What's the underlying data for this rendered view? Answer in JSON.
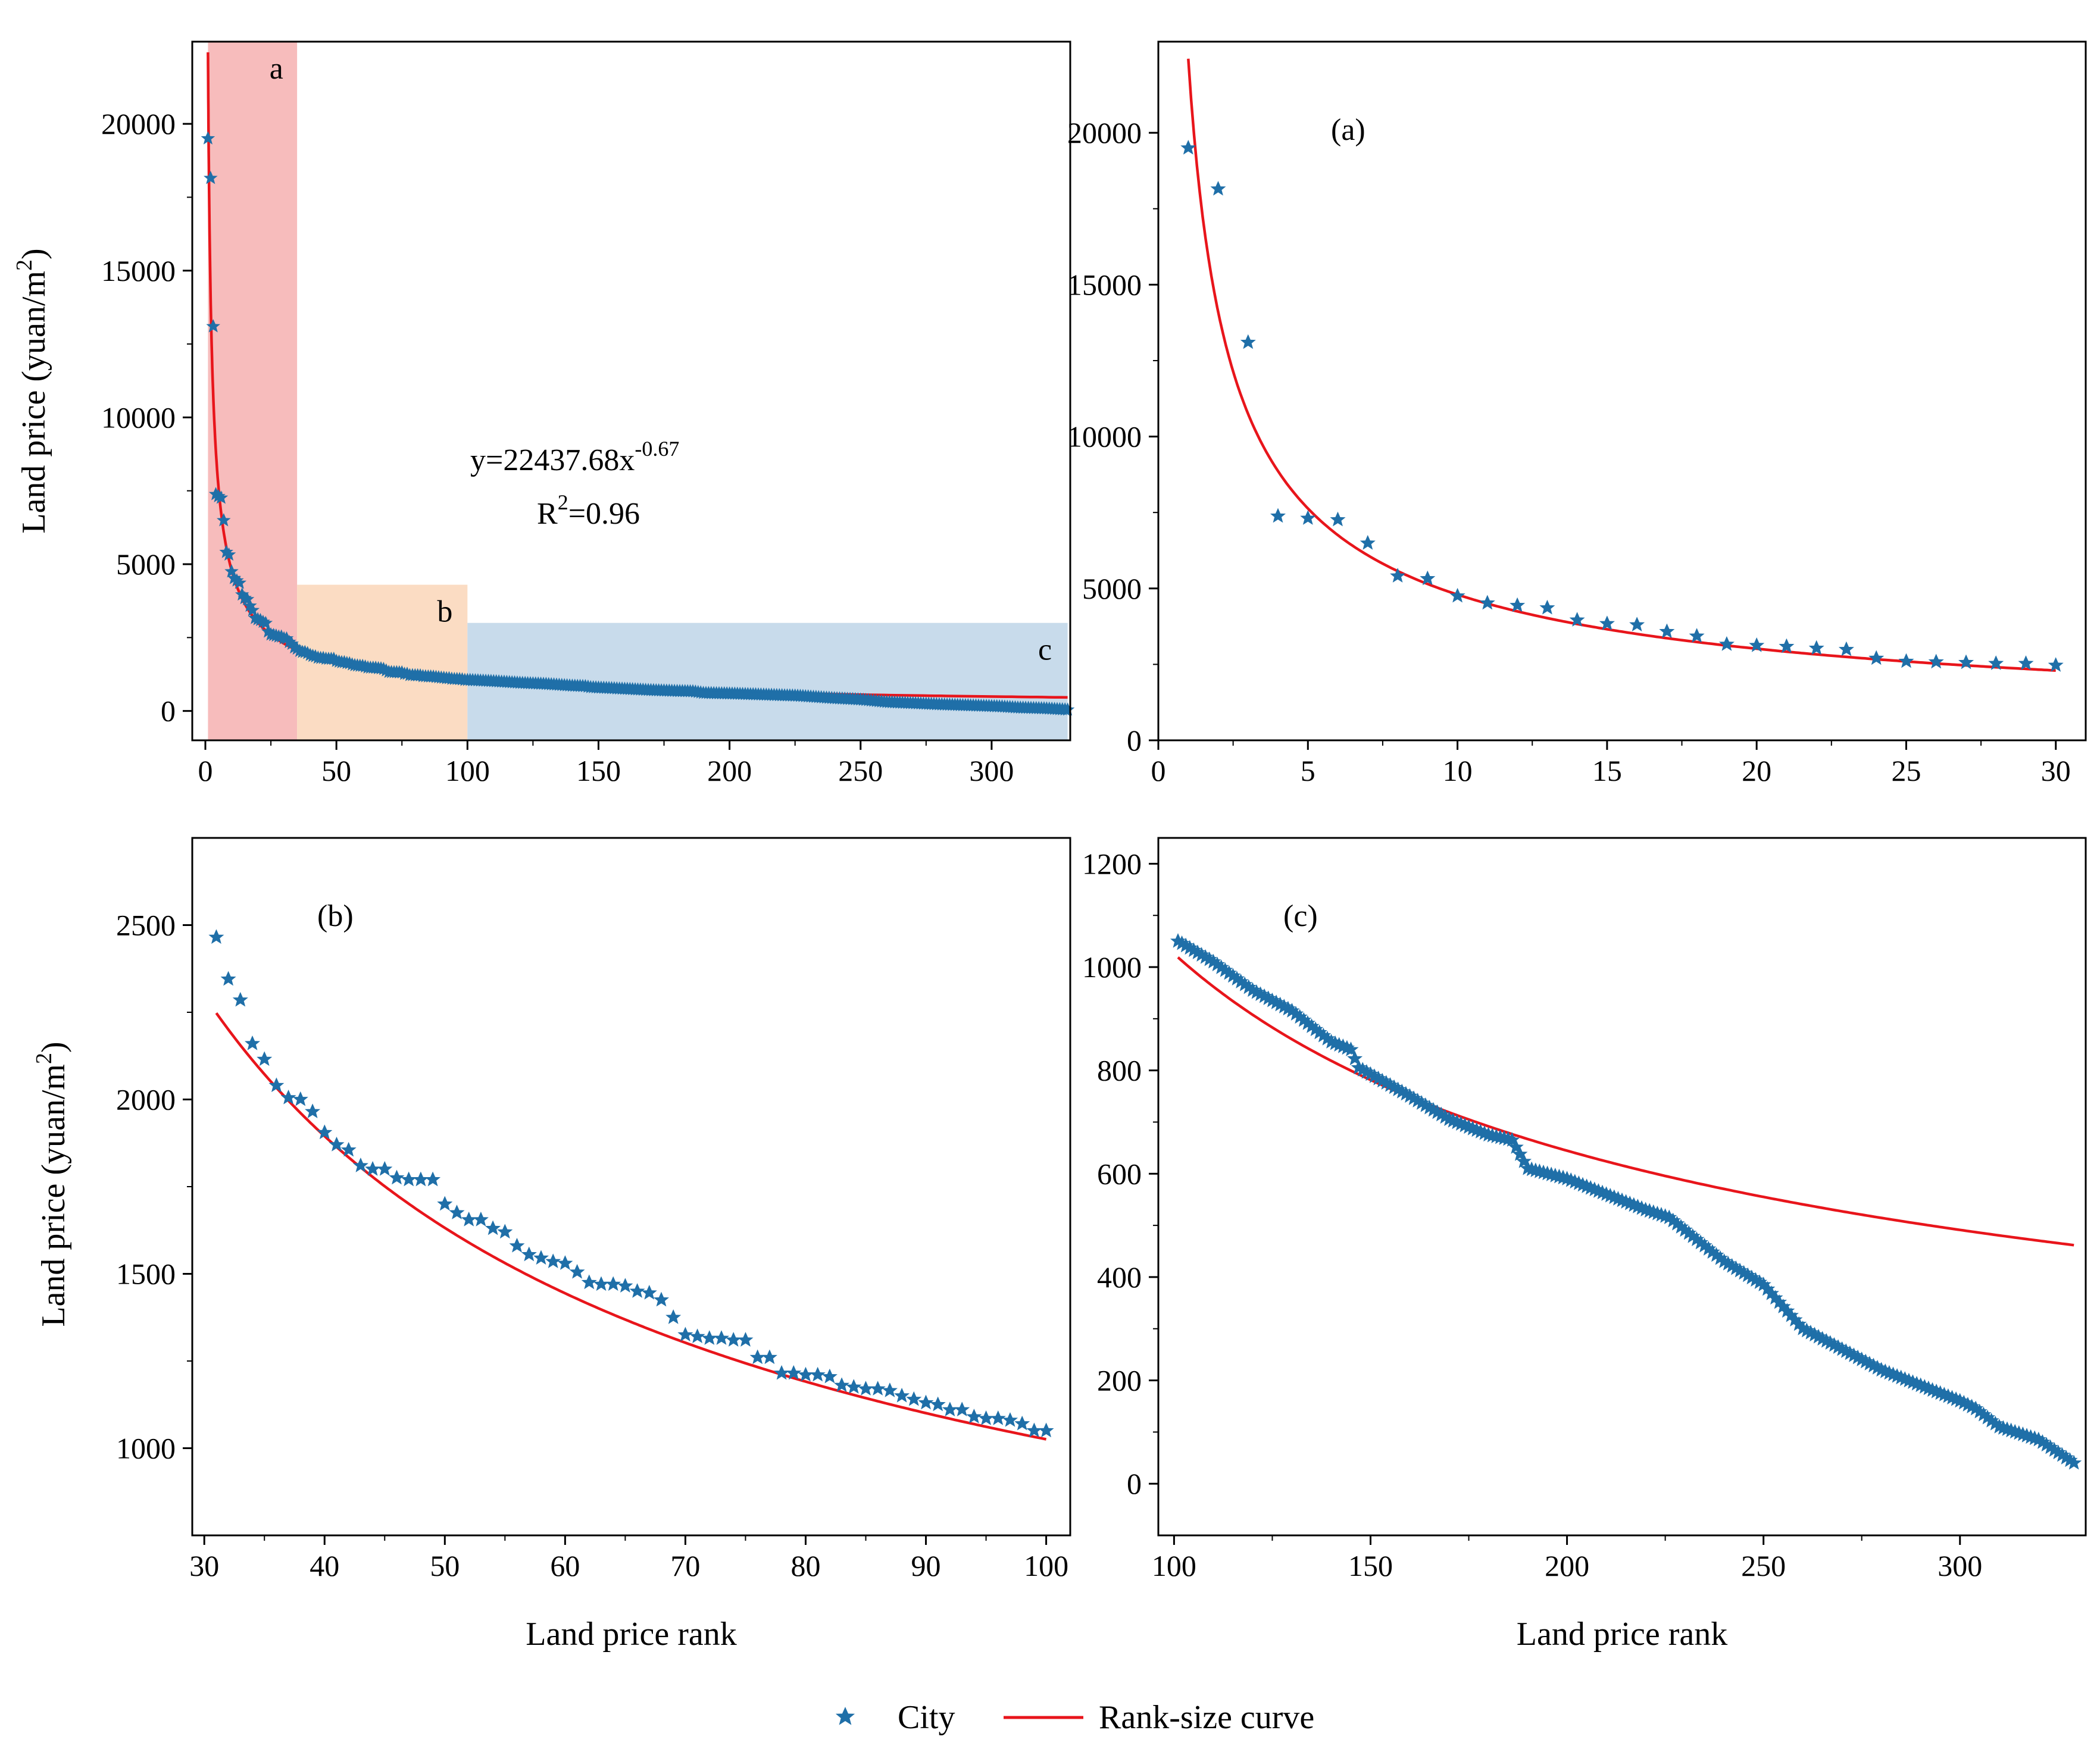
{
  "colors": {
    "city": "#1f6fa8",
    "curve": "#e8151b",
    "region_a": "#f7bcbc",
    "region_b": "#fbdcc3",
    "region_c": "#c8dbeb"
  },
  "legend": {
    "city_label": "City",
    "curve_label": "Rank-size curve"
  },
  "chart_data": [
    {
      "id": "overview",
      "type": "scatter",
      "title": "",
      "xlabel": "",
      "ylabel": "Land price (yuan/m²)",
      "ylabel_main": "Land price (yuan/m",
      "ylabel_sup": "2",
      "ylabel_close": ")",
      "xlim": [
        -5,
        330
      ],
      "ylim": [
        -1000,
        22800
      ],
      "xticks": [
        0,
        50,
        100,
        150,
        200,
        250,
        300
      ],
      "yticks": [
        0,
        5000,
        10000,
        15000,
        20000
      ],
      "regions": [
        {
          "label": "a",
          "x0": 1,
          "x1": 35,
          "y_top": 22800
        },
        {
          "label": "b",
          "x0": 35,
          "x1": 100,
          "y_top": 4300
        },
        {
          "label": "c",
          "x0": 100,
          "x1": 329,
          "y_top": 3000
        }
      ],
      "equation": {
        "base": "y=22437.68x",
        "exp": "-0.67",
        "r_base": "R",
        "r_exp": "2",
        "r_value": "=0.96"
      },
      "fit": {
        "a": 22437.68,
        "b": -0.67,
        "x_from": 1,
        "x_to": 329
      }
    },
    {
      "id": "panel-a",
      "type": "scatter",
      "panel_label": "(a)",
      "xlabel": "",
      "ylabel": "",
      "xlim": [
        0,
        31
      ],
      "ylim": [
        0,
        23000
      ],
      "xticks": [
        0,
        5,
        10,
        15,
        20,
        25,
        30
      ],
      "yticks": [
        0,
        5000,
        10000,
        15000,
        20000
      ],
      "fit": {
        "a": 22437.68,
        "b": -0.67,
        "x_from": 1,
        "x_to": 30
      },
      "x": [
        1,
        2,
        3,
        4,
        5,
        6,
        7,
        8,
        9,
        10,
        11,
        12,
        13,
        14,
        15,
        16,
        17,
        18,
        19,
        20,
        21,
        22,
        23,
        24,
        25,
        26,
        27,
        28,
        29,
        30
      ],
      "y": [
        19500,
        18150,
        13100,
        7380,
        7310,
        7260,
        6490,
        5410,
        5320,
        4750,
        4520,
        4440,
        4360,
        3960,
        3840,
        3800,
        3580,
        3430,
        3160,
        3120,
        3090,
        3030,
        2990,
        2700,
        2600,
        2580,
        2560,
        2530,
        2530,
        2470
      ]
    },
    {
      "id": "panel-b",
      "type": "scatter",
      "panel_label": "(b)",
      "xlabel": "Land price rank",
      "ylabel": "Land price (yuan/m²)",
      "ylabel_main": "Land price (yuan/m",
      "ylabel_sup": "2",
      "ylabel_close": ")",
      "xlim": [
        29,
        102
      ],
      "ylim": [
        750,
        2750
      ],
      "xticks": [
        30,
        40,
        50,
        60,
        70,
        80,
        90,
        100
      ],
      "yticks": [
        1000,
        1500,
        2000,
        2500
      ],
      "fit": {
        "a": 22437.68,
        "b": -0.67,
        "x_from": 31,
        "x_to": 100
      },
      "x": [
        31,
        32,
        33,
        34,
        35,
        36,
        37,
        38,
        39,
        40,
        41,
        42,
        43,
        44,
        45,
        46,
        47,
        48,
        49,
        50,
        51,
        52,
        53,
        54,
        55,
        56,
        57,
        58,
        59,
        60,
        61,
        62,
        63,
        64,
        65,
        66,
        67,
        68,
        69,
        70,
        71,
        72,
        73,
        74,
        75,
        76,
        77,
        78,
        79,
        80,
        81,
        82,
        83,
        84,
        85,
        86,
        87,
        88,
        89,
        90,
        91,
        92,
        93,
        94,
        95,
        96,
        97,
        98,
        99,
        100
      ],
      "y": [
        2465,
        2345,
        2285,
        2160,
        2115,
        2040,
        2005,
        2000,
        1965,
        1905,
        1870,
        1855,
        1810,
        1800,
        1800,
        1775,
        1770,
        1770,
        1770,
        1700,
        1675,
        1655,
        1655,
        1630,
        1620,
        1580,
        1555,
        1545,
        1535,
        1530,
        1505,
        1475,
        1470,
        1470,
        1465,
        1450,
        1445,
        1425,
        1375,
        1325,
        1320,
        1315,
        1315,
        1310,
        1310,
        1260,
        1260,
        1215,
        1215,
        1210,
        1210,
        1205,
        1180,
        1175,
        1170,
        1170,
        1165,
        1150,
        1140,
        1130,
        1125,
        1110,
        1110,
        1090,
        1085,
        1085,
        1080,
        1070,
        1050,
        1050
      ]
    },
    {
      "id": "panel-c",
      "type": "scatter",
      "panel_label": "(c)",
      "xlabel": "Land price rank",
      "ylabel": "",
      "xlim": [
        96,
        332
      ],
      "ylim": [
        -100,
        1250
      ],
      "xticks": [
        100,
        150,
        200,
        250,
        300
      ],
      "yticks": [
        0,
        200,
        400,
        600,
        800,
        1000,
        1200
      ],
      "fit": {
        "a": 22437.68,
        "b": -0.67,
        "x_from": 101,
        "x_to": 329
      },
      "rank_from": 101,
      "rank_to": 329,
      "anchors_x": [
        101,
        110,
        120,
        130,
        140,
        145,
        147,
        160,
        170,
        180,
        186,
        190,
        200,
        210,
        220,
        226,
        240,
        250,
        260,
        280,
        300,
        304,
        310,
        320,
        329
      ],
      "anchors_y": [
        1050,
        1010,
        955,
        915,
        855,
        840,
        805,
        750,
        705,
        675,
        665,
        610,
        590,
        560,
        530,
        515,
        430,
        385,
        300,
        220,
        160,
        145,
        110,
        85,
        40
      ]
    }
  ]
}
